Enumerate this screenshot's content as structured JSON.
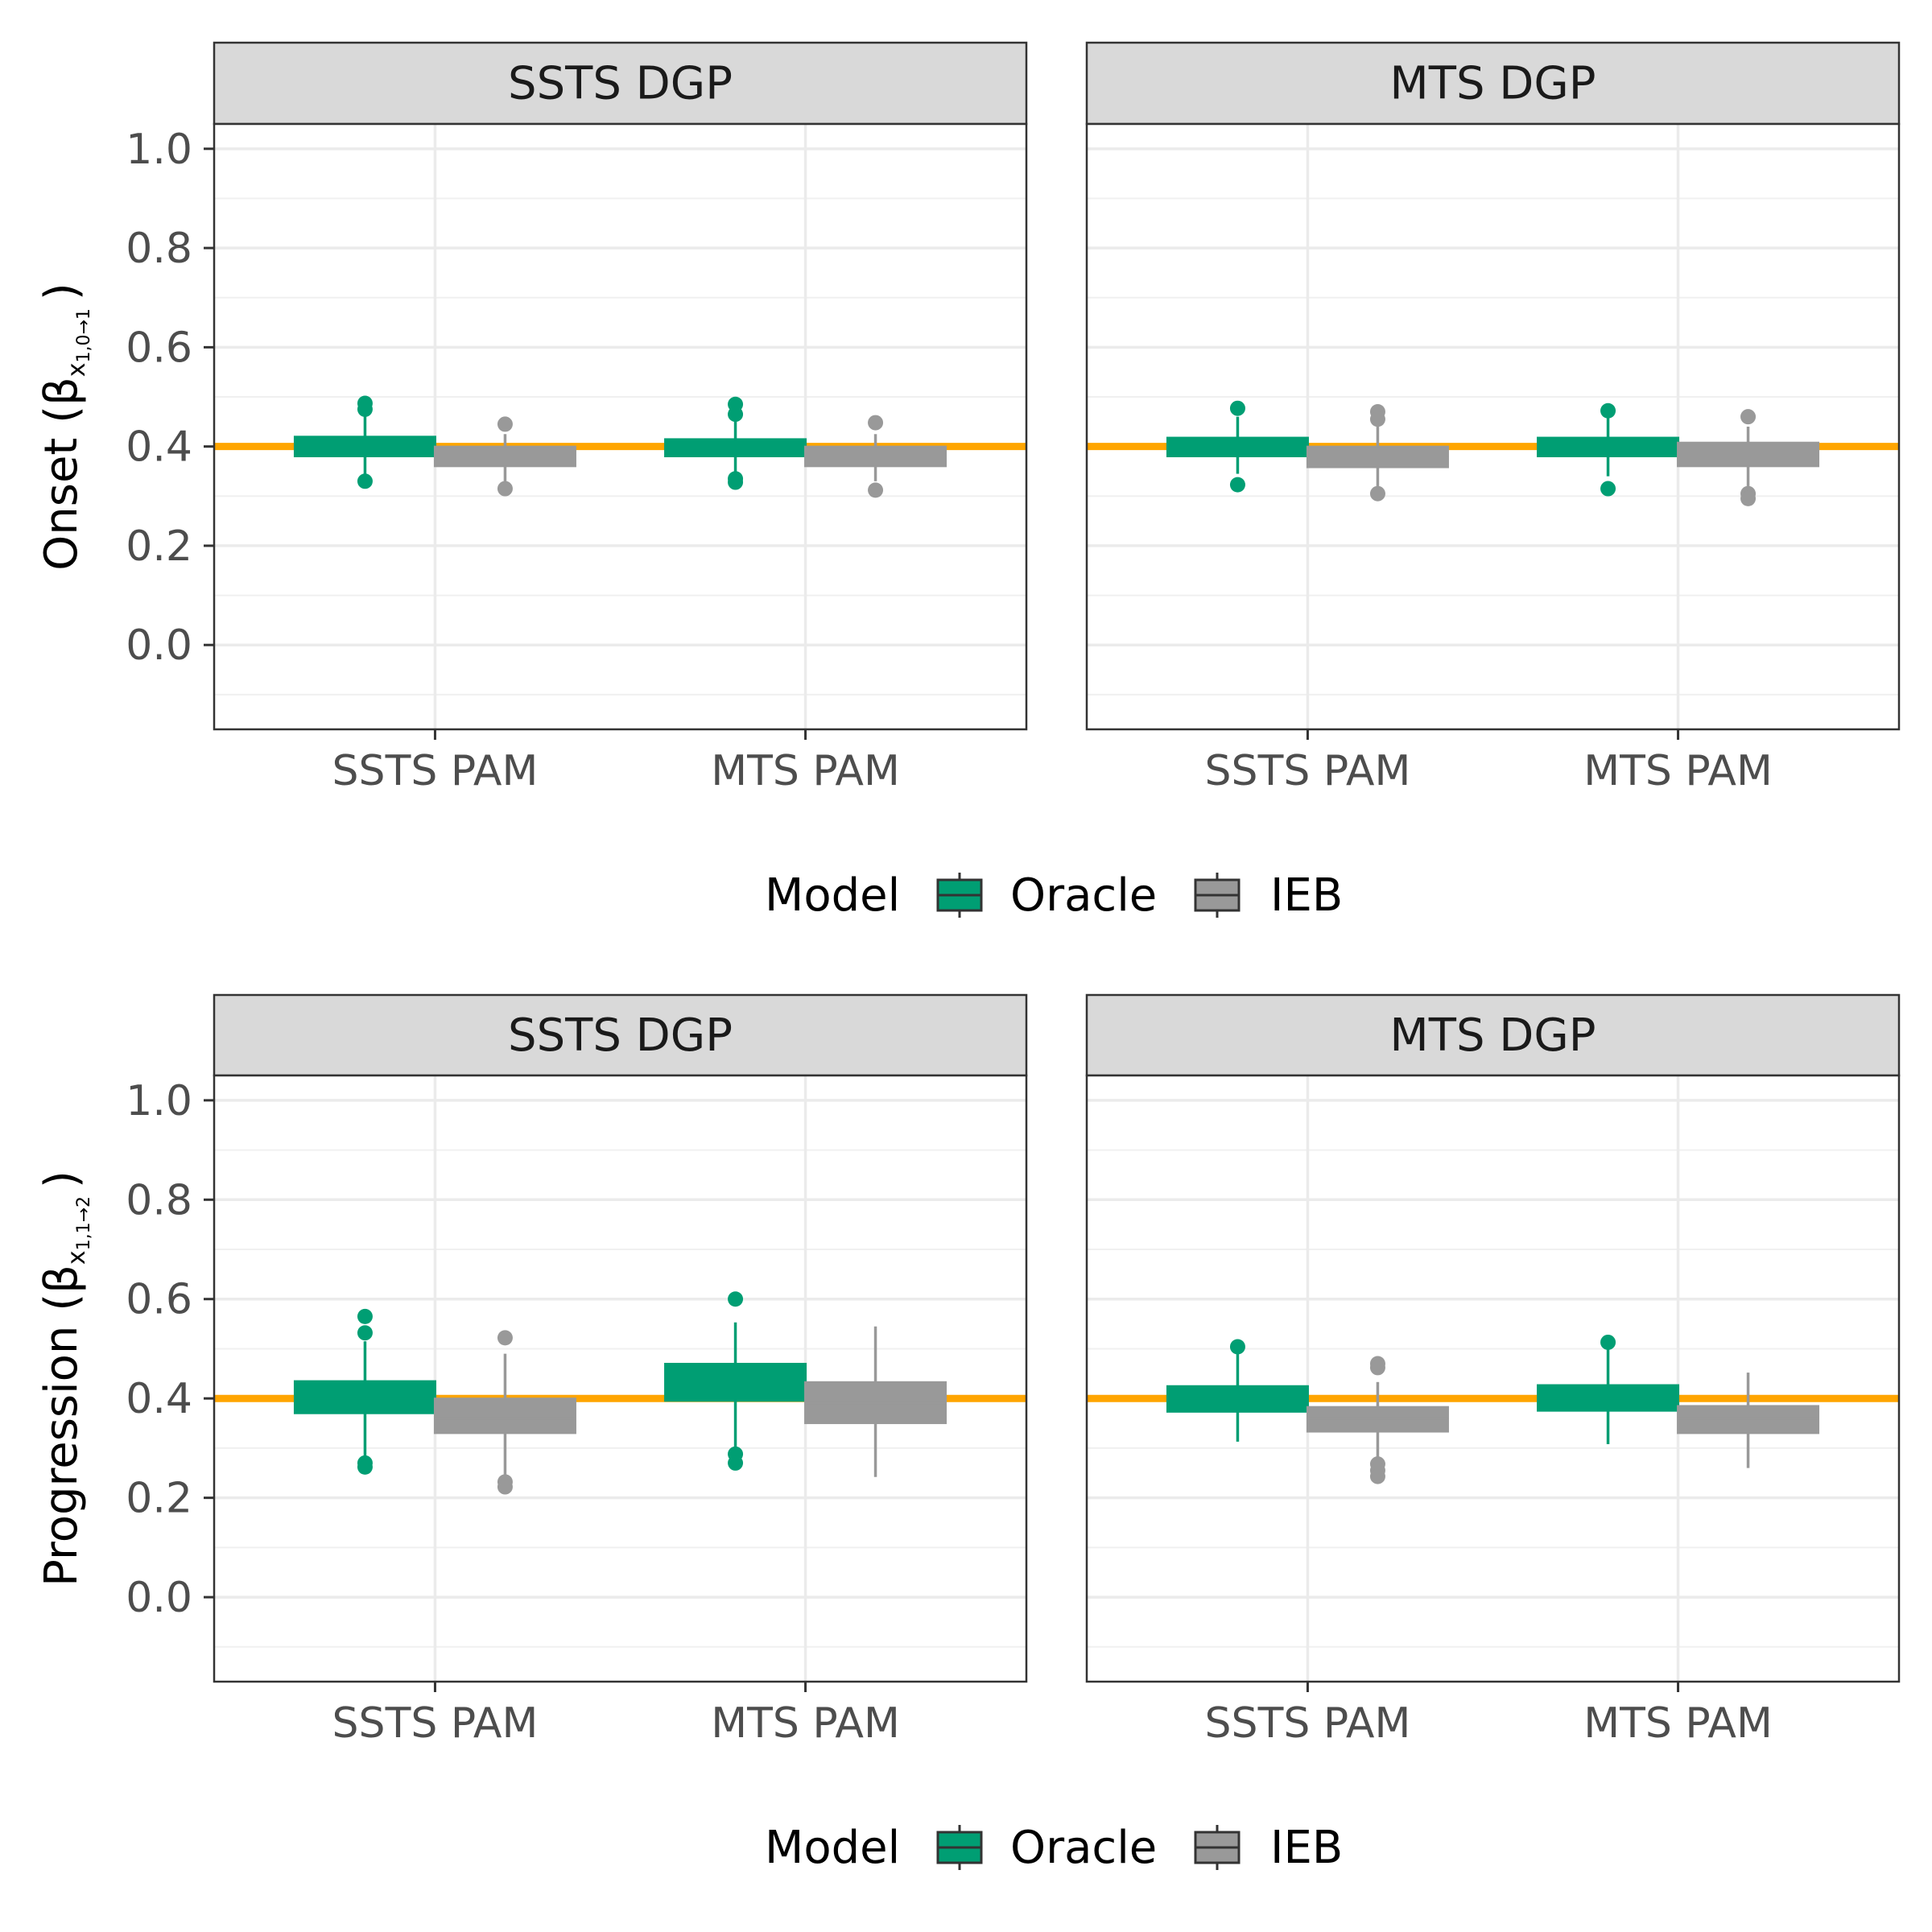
{
  "chart_data": {
    "type": "boxplot",
    "legend": {
      "title": "Model",
      "position": "bottom",
      "entries": [
        {
          "name": "Oracle",
          "color": "#009E73"
        },
        {
          "name": "IEB",
          "color": "#999999"
        }
      ]
    },
    "reference_line": {
      "value": 0.4,
      "color": "#FFA500"
    },
    "colors": {
      "Oracle": "#009E73",
      "IEB": "#999999",
      "reference": "#FFA500"
    },
    "grid": true,
    "ylim": [
      -0.17,
      1.05
    ],
    "yticks": [
      "0.0",
      "0.2",
      "0.4",
      "0.6",
      "0.8",
      "1.0"
    ],
    "categories": [
      "SSTS PAM",
      "MTS PAM"
    ],
    "panels_rows": [
      {
        "ylabel": "Onset (",
        "ylabel_symbol": "β",
        "ylabel_sub": "x",
        "ylabel_subsub": "1,0→1",
        "ylabel_close": ")",
        "facets": [
          {
            "strip": "SSTS DGP",
            "boxes": [
              {
                "category": "SSTS PAM",
                "model": "Oracle",
                "q1": 0.38,
                "median": 0.4,
                "q3": 0.42,
                "whisker_low": 0.345,
                "whisker_high": 0.465,
                "outliers": [
                  0.487,
                  0.475,
                  0.33
                ]
              },
              {
                "category": "SSTS PAM",
                "model": "IEB",
                "q1": 0.36,
                "median": 0.38,
                "q3": 0.4,
                "whisker_low": 0.33,
                "whisker_high": 0.425,
                "outliers": [
                  0.445,
                  0.315
                ]
              },
              {
                "category": "MTS PAM",
                "model": "Oracle",
                "q1": 0.38,
                "median": 0.4,
                "q3": 0.415,
                "whisker_low": 0.345,
                "whisker_high": 0.455,
                "outliers": [
                  0.485,
                  0.465,
                  0.335,
                  0.328
                ]
              },
              {
                "category": "MTS PAM",
                "model": "IEB",
                "q1": 0.36,
                "median": 0.38,
                "q3": 0.4,
                "whisker_low": 0.33,
                "whisker_high": 0.425,
                "outliers": [
                  0.448,
                  0.312
                ]
              }
            ]
          },
          {
            "strip": "MTS DGP",
            "boxes": [
              {
                "category": "SSTS PAM",
                "model": "Oracle",
                "q1": 0.38,
                "median": 0.4,
                "q3": 0.418,
                "whisker_low": 0.345,
                "whisker_high": 0.46,
                "outliers": [
                  0.477,
                  0.323
                ]
              },
              {
                "category": "SSTS PAM",
                "model": "IEB",
                "q1": 0.358,
                "median": 0.38,
                "q3": 0.4,
                "whisker_low": 0.32,
                "whisker_high": 0.44,
                "outliers": [
                  0.47,
                  0.455,
                  0.305
                ]
              },
              {
                "category": "MTS PAM",
                "model": "Oracle",
                "q1": 0.38,
                "median": 0.4,
                "q3": 0.418,
                "whisker_low": 0.34,
                "whisker_high": 0.46,
                "outliers": [
                  0.472,
                  0.315
                ]
              },
              {
                "category": "MTS PAM",
                "model": "IEB",
                "q1": 0.36,
                "median": 0.38,
                "q3": 0.408,
                "whisker_low": 0.32,
                "whisker_high": 0.44,
                "outliers": [
                  0.46,
                  0.305,
                  0.295
                ]
              }
            ]
          }
        ]
      },
      {
        "ylabel": "Progression (",
        "ylabel_symbol": "β",
        "ylabel_sub": "x",
        "ylabel_subsub": "1,1→2",
        "ylabel_close": ")",
        "facets": [
          {
            "strip": "SSTS DGP",
            "boxes": [
              {
                "category": "SSTS PAM",
                "model": "Oracle",
                "q1": 0.37,
                "median": 0.4,
                "q3": 0.435,
                "whisker_low": 0.285,
                "whisker_high": 0.515,
                "outliers": [
                  0.565,
                  0.532,
                  0.27,
                  0.262
                ]
              },
              {
                "category": "SSTS PAM",
                "model": "IEB",
                "q1": 0.33,
                "median": 0.36,
                "q3": 0.4,
                "whisker_low": 0.24,
                "whisker_high": 0.49,
                "outliers": [
                  0.522,
                  0.232,
                  0.222
                ]
              },
              {
                "category": "MTS PAM",
                "model": "Oracle",
                "q1": 0.395,
                "median": 0.43,
                "q3": 0.47,
                "whisker_low": 0.3,
                "whisker_high": 0.553,
                "outliers": [
                  0.6,
                  0.288,
                  0.27
                ]
              },
              {
                "category": "MTS PAM",
                "model": "IEB",
                "q1": 0.35,
                "median": 0.39,
                "q3": 0.433,
                "whisker_low": 0.242,
                "whisker_high": 0.545,
                "outliers": []
              }
            ]
          },
          {
            "strip": "MTS DGP",
            "boxes": [
              {
                "category": "SSTS PAM",
                "model": "Oracle",
                "q1": 0.373,
                "median": 0.4,
                "q3": 0.425,
                "whisker_low": 0.313,
                "whisker_high": 0.495,
                "outliers": [
                  0.504
                ]
              },
              {
                "category": "SSTS PAM",
                "model": "IEB",
                "q1": 0.333,
                "median": 0.36,
                "q3": 0.383,
                "whisker_low": 0.28,
                "whisker_high": 0.433,
                "outliers": [
                  0.47,
                  0.462,
                  0.268,
                  0.255,
                  0.243
                ]
              },
              {
                "category": "MTS PAM",
                "model": "Oracle",
                "q1": 0.375,
                "median": 0.4,
                "q3": 0.427,
                "whisker_low": 0.308,
                "whisker_high": 0.5,
                "outliers": [
                  0.513
                ]
              },
              {
                "category": "MTS PAM",
                "model": "IEB",
                "q1": 0.33,
                "median": 0.36,
                "q3": 0.385,
                "whisker_low": 0.26,
                "whisker_high": 0.452,
                "outliers": []
              }
            ]
          }
        ]
      }
    ]
  }
}
